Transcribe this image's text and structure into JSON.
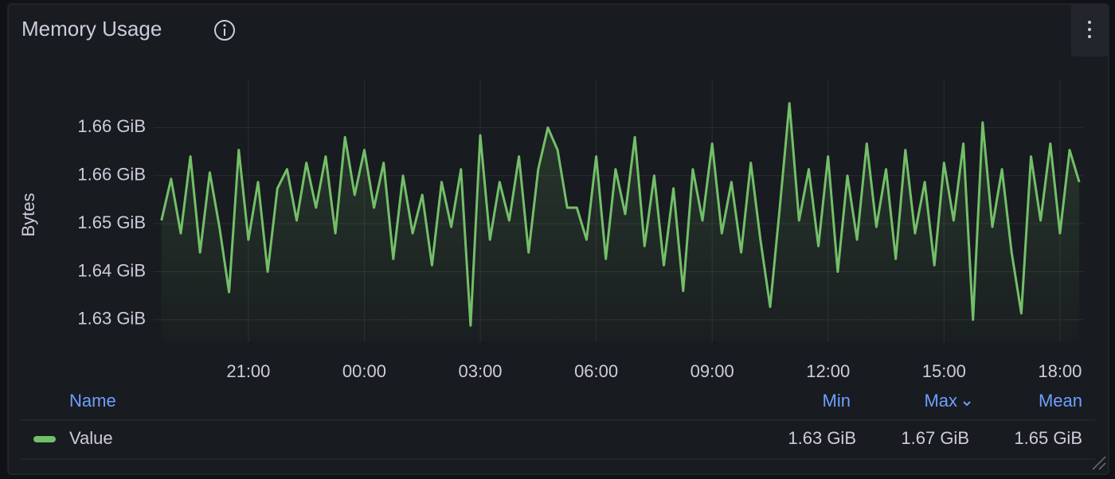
{
  "chart_data": {
    "type": "line",
    "title": "Memory Usage",
    "y_label": "Bytes",
    "x": [
      "18:45",
      "19:00",
      "19:15",
      "19:30",
      "19:45",
      "20:00",
      "20:15",
      "20:30",
      "20:45",
      "21:00",
      "21:15",
      "21:30",
      "21:45",
      "22:00",
      "22:15",
      "22:30",
      "22:45",
      "23:00",
      "23:15",
      "23:30",
      "23:45",
      "00:00",
      "00:15",
      "00:30",
      "00:45",
      "01:00",
      "01:15",
      "01:30",
      "01:45",
      "02:00",
      "02:15",
      "02:30",
      "02:45",
      "03:00",
      "03:15",
      "03:30",
      "03:45",
      "04:00",
      "04:15",
      "04:30",
      "04:45",
      "05:00",
      "05:15",
      "05:30",
      "05:45",
      "06:00",
      "06:15",
      "06:30",
      "06:45",
      "07:00",
      "07:15",
      "07:30",
      "07:45",
      "08:00",
      "08:15",
      "08:30",
      "08:45",
      "09:00",
      "09:15",
      "09:30",
      "09:45",
      "10:00",
      "10:15",
      "10:30",
      "10:45",
      "11:00",
      "11:15",
      "11:30",
      "11:45",
      "12:00",
      "12:15",
      "12:30",
      "12:45",
      "13:00",
      "13:15",
      "13:30",
      "13:45",
      "14:00",
      "14:15",
      "14:30",
      "14:45",
      "15:00",
      "15:15",
      "15:30",
      "15:45",
      "16:00",
      "16:15",
      "16:30",
      "16:45",
      "17:00",
      "17:15",
      "17:30",
      "17:45",
      "18:00",
      "18:15",
      "18:30"
    ],
    "series": [
      {
        "name": "Value",
        "color": "#73bf69",
        "values": [
          1.648,
          1.6545,
          1.646,
          1.658,
          1.643,
          1.6555,
          1.647,
          1.6368,
          1.659,
          1.645,
          1.654,
          1.64,
          1.653,
          1.656,
          1.648,
          1.657,
          1.65,
          1.658,
          1.646,
          1.661,
          1.652,
          1.659,
          1.65,
          1.657,
          1.642,
          1.655,
          1.646,
          1.652,
          1.641,
          1.654,
          1.647,
          1.656,
          1.6316,
          1.6613,
          1.645,
          1.654,
          1.648,
          1.658,
          1.643,
          1.656,
          1.6625,
          1.659,
          1.65,
          1.65,
          1.645,
          1.658,
          1.642,
          1.656,
          1.649,
          1.661,
          1.644,
          1.655,
          1.641,
          1.653,
          1.637,
          1.656,
          1.648,
          1.66,
          1.646,
          1.654,
          1.643,
          1.657,
          1.645,
          1.6345,
          1.65,
          1.6663,
          1.648,
          1.656,
          1.644,
          1.658,
          1.64,
          1.655,
          1.645,
          1.66,
          1.647,
          1.656,
          1.642,
          1.659,
          1.646,
          1.654,
          1.641,
          1.657,
          1.648,
          1.66,
          1.6325,
          1.6633,
          1.647,
          1.656,
          1.643,
          1.6335,
          1.658,
          1.648,
          1.66,
          1.646,
          1.659,
          1.654
        ]
      }
    ],
    "xlim": [
      "18:33",
      "18:36"
    ],
    "xticks": [
      "21:00",
      "00:00",
      "03:00",
      "06:00",
      "09:00",
      "12:00",
      "15:00",
      "18:00"
    ],
    "ylim": [
      1.629,
      1.67
    ],
    "yticks": [
      {
        "value": 1.6325,
        "label": "1.63 GiB"
      },
      {
        "value": 1.64,
        "label": "1.64 GiB"
      },
      {
        "value": 1.6475,
        "label": "1.65 GiB"
      },
      {
        "value": 1.655,
        "label": "1.66 GiB"
      },
      {
        "value": 1.6625,
        "label": "1.66 GiB"
      }
    ],
    "grid": true,
    "legend": {
      "columns": [
        "Name",
        "Min",
        "Max",
        "Mean"
      ],
      "stats": [
        "1.63 GiB",
        "1.67 GiB",
        "1.65 GiB"
      ]
    }
  }
}
